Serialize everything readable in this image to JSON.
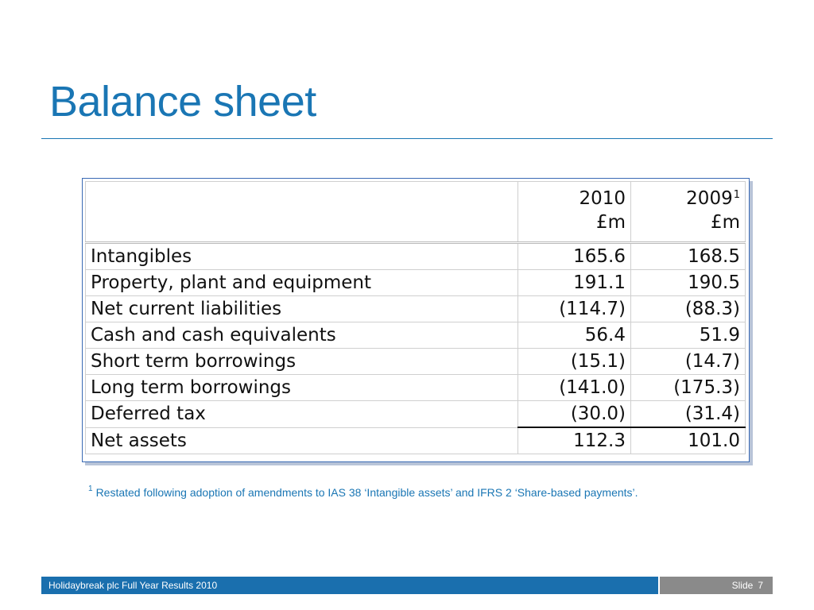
{
  "slide": {
    "title": "Balance sheet",
    "footer_left": "Holidaybreak plc Full Year Results 2010",
    "footer_slide_label": "Slide",
    "footer_slide_number": "7"
  },
  "table": {
    "headers": [
      {
        "year": "2010",
        "sup": "",
        "unit": "£m"
      },
      {
        "year": "2009",
        "sup": "1",
        "unit": "£m"
      }
    ],
    "rows": [
      {
        "label": "Intangibles",
        "v2010": "165.6",
        "v2009": "168.5"
      },
      {
        "label": "Property, plant and equipment",
        "v2010": "191.1",
        "v2009": "190.5"
      },
      {
        "label": "Net current liabilities",
        "v2010": "(114.7)",
        "v2009": "(88.3)"
      },
      {
        "label": "Cash and cash equivalents",
        "v2010": "56.4",
        "v2009": "51.9"
      },
      {
        "label": "Short term borrowings",
        "v2010": "(15.1)",
        "v2009": "(14.7)"
      },
      {
        "label": "Long term borrowings",
        "v2010": "(141.0)",
        "v2009": "(175.3)"
      },
      {
        "label": "Deferred tax",
        "v2010": "(30.0)",
        "v2009": "(31.4)"
      },
      {
        "label": "Net assets",
        "v2010": "112.3",
        "v2009": "101.0"
      }
    ]
  },
  "footnote": {
    "marker": "1",
    "text": "Restated following adoption of amendments to IAS 38 ‘Intangible assets’ and IFRS 2 ‘Share-based payments’."
  }
}
